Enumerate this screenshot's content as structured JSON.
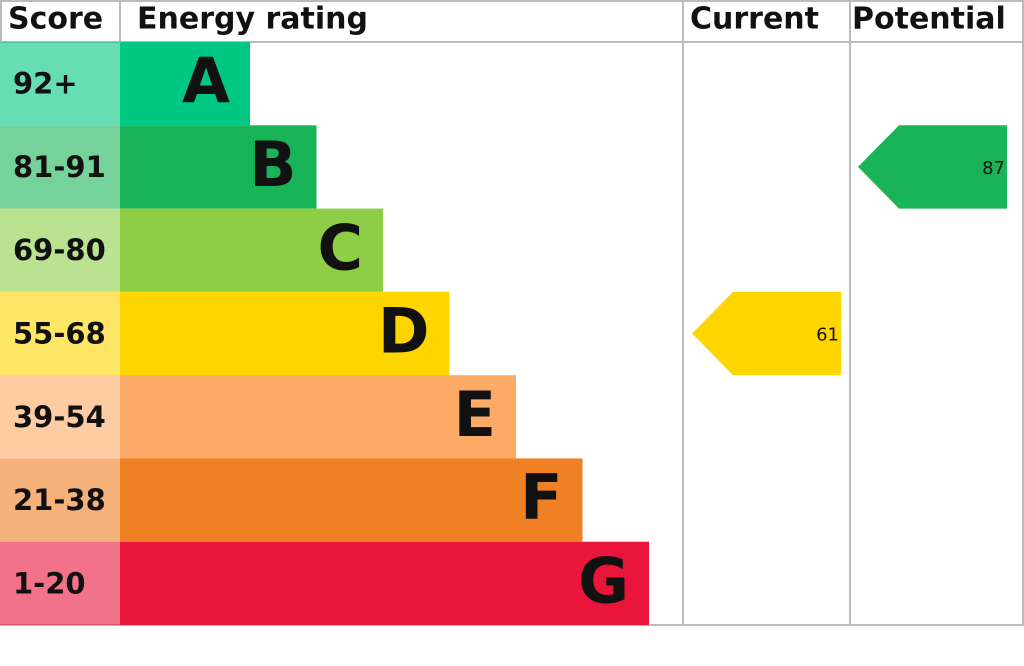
{
  "header": {
    "score": "Score",
    "rating": "Energy rating",
    "current": "Current",
    "potential": "Potential"
  },
  "bands": [
    {
      "score": "92+",
      "letter": "A",
      "color": "#00c781"
    },
    {
      "score": "81-91",
      "letter": "B",
      "color": "#19b459"
    },
    {
      "score": "69-80",
      "letter": "C",
      "color": "#8dce46"
    },
    {
      "score": "55-68",
      "letter": "D",
      "color": "#ffd500"
    },
    {
      "score": "39-54",
      "letter": "E",
      "color": "#fcaa65"
    },
    {
      "score": "21-38",
      "letter": "F",
      "color": "#ef8023"
    },
    {
      "score": "1-20",
      "letter": "G",
      "color": "#e9153b"
    }
  ],
  "current": {
    "value": 61
  },
  "potential": {
    "value": 87
  }
}
